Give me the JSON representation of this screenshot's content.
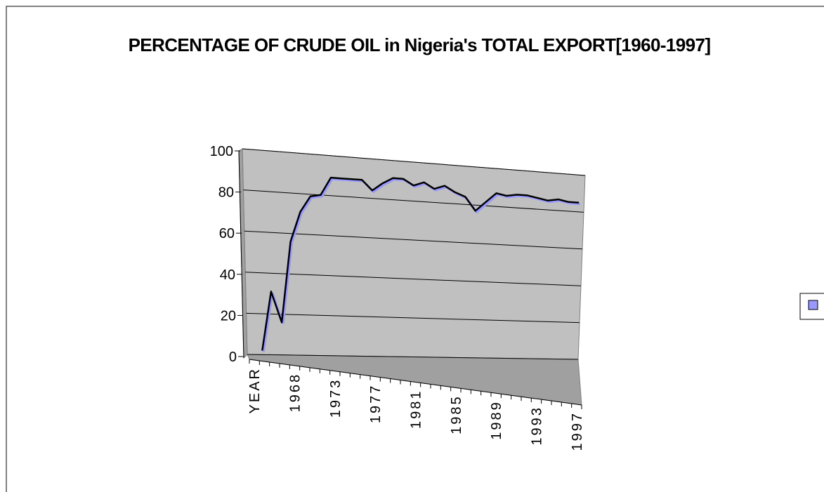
{
  "chart_data": {
    "type": "line3d",
    "title": "PERCENTAGE OF CRUDE OIL  in Nigeria's TOTAL EXPORT[1960-1997]",
    "categories": [
      "YEAR",
      null,
      null,
      null,
      "1968",
      null,
      null,
      null,
      "1973",
      null,
      null,
      null,
      "1977",
      null,
      null,
      null,
      "1981",
      null,
      null,
      null,
      "1985",
      null,
      null,
      null,
      "1989",
      null,
      null,
      null,
      "1993",
      null,
      null,
      null,
      "1997"
    ],
    "series": [
      {
        "color": "#9999ff",
        "values": [
          null,
          2,
          31,
          16,
          56,
          71,
          79,
          80,
          89,
          89,
          89,
          89,
          84,
          88,
          91,
          91,
          88,
          90,
          87,
          89,
          86,
          84,
          77,
          82,
          87,
          86,
          87,
          87,
          86,
          85,
          86,
          85,
          85
        ]
      }
    ],
    "ylim": [
      0,
      100
    ],
    "yticks": [
      0,
      20,
      40,
      60,
      80,
      100
    ],
    "grid": true,
    "legend": "right"
  }
}
